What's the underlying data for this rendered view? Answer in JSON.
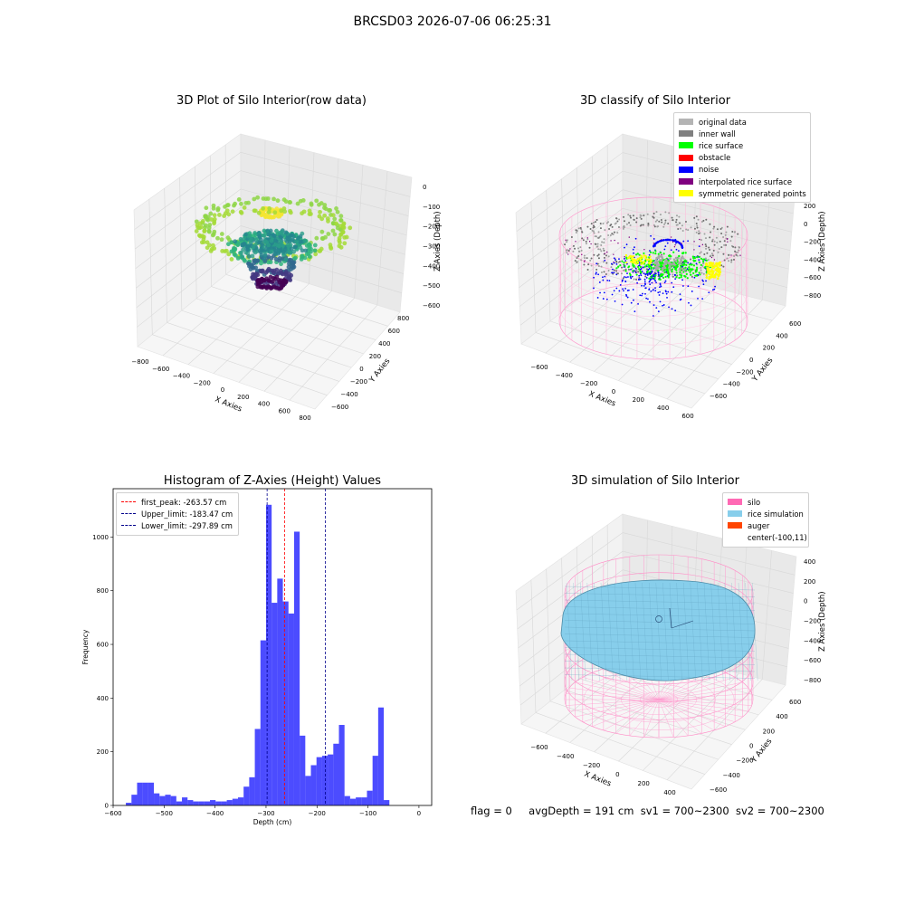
{
  "figure": {
    "suptitle": "BRCSD03 2026-07-06 06:25:31",
    "footer": {
      "flag": "flag = 0",
      "avg_depth": "avgDepth = 191 cm",
      "sv1": "sv1 = 700~2300",
      "sv2": "sv2 = 700~2300"
    }
  },
  "chart_data": [
    {
      "type": "scatter",
      "title": "3D Plot of Silo Interior(row data)",
      "xlabel": "X Axies",
      "ylabel": "Y Axies",
      "zlabel": "Z Axies (Depth)",
      "xticks": [
        "−800",
        "−600",
        "−400",
        "−200",
        "0",
        "200",
        "400",
        "600",
        "800"
      ],
      "yticks": [
        "−600",
        "−400",
        "−200",
        "0",
        "200",
        "400",
        "600",
        "800"
      ],
      "zticks": [
        "0",
        "−100",
        "−200",
        "−300",
        "−400",
        "−500",
        "−600"
      ],
      "colormap": "viridis",
      "rings": [
        {
          "z": -90,
          "r": 80,
          "color": "#f3e532"
        },
        {
          "z": -150,
          "r": 560,
          "color": "#8ed645"
        },
        {
          "z": -230,
          "r": 600,
          "color": "#a5db36"
        },
        {
          "z": -280,
          "r": 230,
          "color": "#26a784"
        },
        {
          "z": -330,
          "r": 330,
          "color": "#2fb47c"
        },
        {
          "z": -440,
          "r": 180,
          "color": "#31688e"
        },
        {
          "z": -520,
          "r": 150,
          "color": "#443a83"
        },
        {
          "z": -560,
          "r": 110,
          "color": "#440154"
        }
      ]
    },
    {
      "type": "scatter",
      "title": "3D classify of Silo Interior",
      "xlabel": "X Axies",
      "ylabel": "Y Axies",
      "zlabel": "Z Axies (Depth)",
      "xticks": [
        "−600",
        "−400",
        "−200",
        "0",
        "200",
        "400",
        "600"
      ],
      "yticks": [
        "−600",
        "−400",
        "−200",
        "0",
        "200",
        "400",
        "600"
      ],
      "zticks": [
        "200",
        "0",
        "−200",
        "−400",
        "−600",
        "−800"
      ],
      "legend": [
        {
          "label": "original data",
          "color": "#b4b4b4"
        },
        {
          "label": "inner wall",
          "color": "#808080"
        },
        {
          "label": "rice surface",
          "color": "#00ff00"
        },
        {
          "label": "obstacle",
          "color": "#ff0000"
        },
        {
          "label": "noise",
          "color": "#0000ff"
        },
        {
          "label": "interpolated rice surface",
          "color": "#800080"
        },
        {
          "label": "symmetric generated points",
          "color": "#ffff00"
        }
      ]
    },
    {
      "type": "bar",
      "title": "Histogram of Z-Axies (Height) Values",
      "xlabel": "Depth (cm)",
      "ylabel": "Frequency",
      "xlim": [
        -600,
        25
      ],
      "ylim": [
        0,
        1180
      ],
      "xticks": [
        -600,
        -500,
        -400,
        -300,
        -200,
        -100,
        0
      ],
      "yticks": [
        0,
        200,
        400,
        600,
        800,
        1000
      ],
      "bin_start": -575,
      "bin_width": 11,
      "values": [
        10,
        40,
        85,
        85,
        85,
        45,
        35,
        40,
        35,
        15,
        30,
        20,
        15,
        15,
        15,
        20,
        15,
        15,
        20,
        25,
        30,
        70,
        105,
        285,
        615,
        1120,
        755,
        845,
        760,
        715,
        1020,
        260,
        110,
        150,
        180,
        185,
        190,
        230,
        300,
        35,
        25,
        30,
        30,
        55,
        185,
        365,
        20
      ],
      "color": "#0000ff",
      "vlines": [
        {
          "label": "first_peak: -263.57 cm",
          "x": -263.57,
          "color": "#ff0000"
        },
        {
          "label": "Upper_limit: -183.47 cm",
          "x": -183.47,
          "color": "#00008b"
        },
        {
          "label": "Lower_limit: -297.89 cm",
          "x": -297.89,
          "color": "#00008b"
        }
      ]
    },
    {
      "type": "surface",
      "title": "3D simulation of Silo Interior",
      "xlabel": "X Axies",
      "ylabel": "Y Axies",
      "zlabel": "Z Axies (Depth)",
      "xticks": [
        "−600",
        "−400",
        "−200",
        "0",
        "200",
        "400"
      ],
      "yticks": [
        "−600",
        "−400",
        "−200",
        "0",
        "200",
        "400",
        "600"
      ],
      "zticks": [
        "400",
        "200",
        "0",
        "−200",
        "−400",
        "−600",
        "−800"
      ],
      "legend": [
        {
          "label": "silo",
          "color": "#ff69b4"
        },
        {
          "label": "rice simulation",
          "color": "#87ceeb"
        },
        {
          "label": "auger",
          "color": "#ff4500"
        },
        {
          "label": "center(-100,11)",
          "color": ""
        }
      ]
    }
  ]
}
